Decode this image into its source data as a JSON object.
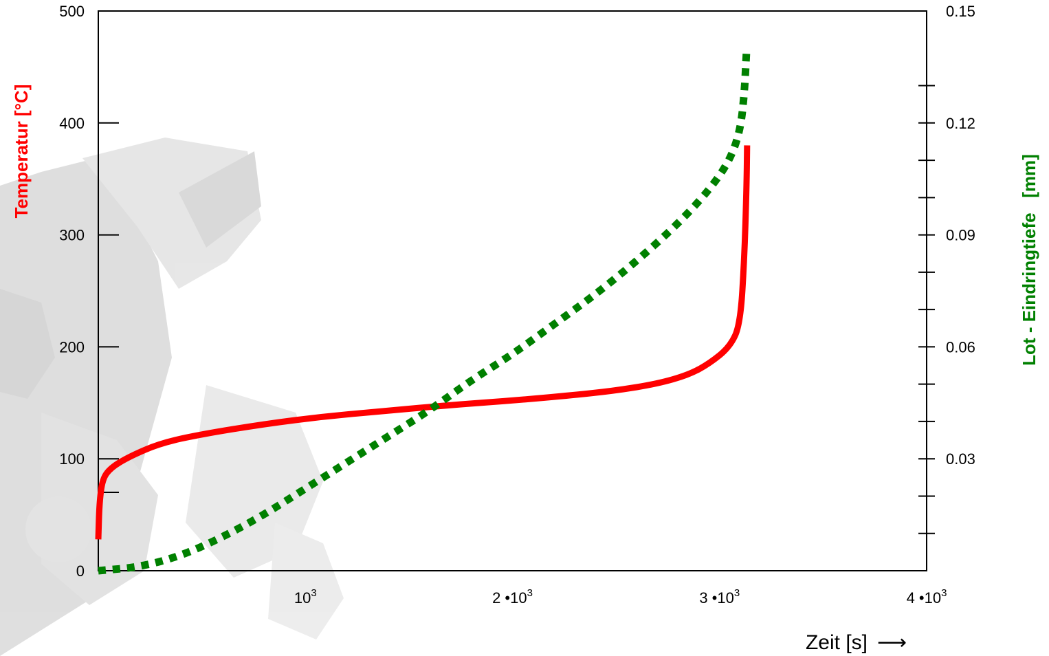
{
  "chart_data": {
    "type": "line",
    "xlabel": "Zeit [s]",
    "xlabel_arrow": "⟶",
    "xlim": [
      0,
      4000
    ],
    "x_ticks": [
      {
        "value": 1000,
        "base": "10",
        "exp": "3"
      },
      {
        "value": 2000,
        "base": "2 •10",
        "exp": "3"
      },
      {
        "value": 3000,
        "base": "3 •10",
        "exp": "3"
      },
      {
        "value": 4000,
        "base": "4 •10",
        "exp": "3"
      }
    ],
    "y_left": {
      "label": "Temperatur [°C]",
      "color": "#ff0000",
      "ylim": [
        0,
        500
      ],
      "ticks": [
        0,
        100,
        200,
        300,
        400,
        500
      ]
    },
    "y_right": {
      "label": "Lot - Eindringtiefe   [mm]",
      "color": "#008000",
      "ylim": [
        0,
        0.15
      ],
      "ticks": [
        "0.03",
        "0.06",
        "0.09",
        "0.12",
        "0.15"
      ],
      "tick_values": [
        0.03,
        0.06,
        0.09,
        0.12,
        0.15
      ],
      "minor_ticks": [
        0.01,
        0.02,
        0.04,
        0.05,
        0.07,
        0.08,
        0.1,
        0.11,
        0.13
      ]
    },
    "grid": false,
    "series": [
      {
        "axis": "left",
        "style": "solid",
        "color": "#ff0000",
        "points": [
          [
            0,
            28
          ],
          [
            5,
            60
          ],
          [
            20,
            82
          ],
          [
            60,
            92
          ],
          [
            150,
            102
          ],
          [
            300,
            114
          ],
          [
            500,
            122
          ],
          [
            800,
            131
          ],
          [
            1100,
            138
          ],
          [
            1400,
            143
          ],
          [
            1700,
            148
          ],
          [
            2000,
            152
          ],
          [
            2300,
            157
          ],
          [
            2500,
            161
          ],
          [
            2700,
            167
          ],
          [
            2850,
            175
          ],
          [
            2950,
            185
          ],
          [
            3050,
            200
          ],
          [
            3100,
            220
          ],
          [
            3120,
            280
          ],
          [
            3130,
            340
          ],
          [
            3133,
            380
          ]
        ]
      },
      {
        "axis": "right",
        "style": "dotted",
        "color": "#008000",
        "points": [
          [
            0,
            0.0
          ],
          [
            200,
            0.001
          ],
          [
            400,
            0.004
          ],
          [
            600,
            0.009
          ],
          [
            800,
            0.015
          ],
          [
            1000,
            0.022
          ],
          [
            1200,
            0.029
          ],
          [
            1400,
            0.036
          ],
          [
            1600,
            0.043
          ],
          [
            1800,
            0.051
          ],
          [
            2000,
            0.058
          ],
          [
            2200,
            0.066
          ],
          [
            2400,
            0.074
          ],
          [
            2600,
            0.083
          ],
          [
            2800,
            0.093
          ],
          [
            2950,
            0.102
          ],
          [
            3050,
            0.11
          ],
          [
            3100,
            0.118
          ],
          [
            3120,
            0.128
          ],
          [
            3130,
            0.139
          ]
        ]
      }
    ]
  }
}
